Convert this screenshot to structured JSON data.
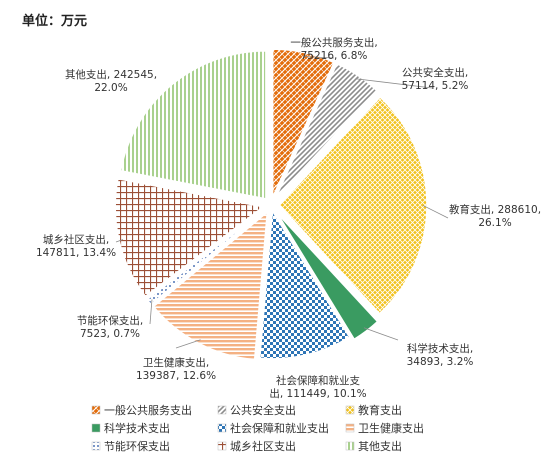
{
  "unit_label": "单位：万元",
  "chart_data": {
    "type": "pie",
    "title": "",
    "unit": "万元",
    "slices": [
      {
        "name": "一般公共服务支出",
        "value": 75216,
        "percent": "6.8%",
        "label_lines": [
          "一般公共服务支出,",
          "75216, 6.8%"
        ],
        "color": "#e36c0a",
        "pattern": "hatch-orange"
      },
      {
        "name": "公共安全支出",
        "value": 57114,
        "percent": "5.2%",
        "label_lines": [
          "公共安全支出,",
          "57114, 5.2%"
        ],
        "color": "#a6a6a6",
        "pattern": "diag-grey"
      },
      {
        "name": "教育支出",
        "value": 288610,
        "percent": "26.1%",
        "label_lines": [
          "教育支出, 288610,",
          "26.1%"
        ],
        "color": "#f2c21c",
        "pattern": "grid-yellow"
      },
      {
        "name": "科学技术支出",
        "value": 34893,
        "percent": "3.2%",
        "label_lines": [
          "科学技术支出,",
          "34893, 3.2%"
        ],
        "color": "#3a9b61",
        "pattern": "solid-green"
      },
      {
        "name": "社会保障和就业支出",
        "value": 111449,
        "percent": "10.1%",
        "label_lines": [
          "社会保障和就业支",
          "出, 111449, 10.1%"
        ],
        "color": "#2e75b6",
        "pattern": "check-blue"
      },
      {
        "name": "卫生健康支出",
        "value": 139387,
        "percent": "12.6%",
        "label_lines": [
          "卫生健康支出,",
          "139387, 12.6%"
        ],
        "color": "#f4b183",
        "pattern": "hlines-peach"
      },
      {
        "name": "节能环保支出",
        "value": 7523,
        "percent": "0.7%",
        "label_lines": [
          "节能环保支出,",
          "7523, 0.7%"
        ],
        "color": "#8aa6d6",
        "pattern": "dots-blue"
      },
      {
        "name": "城乡社区支出",
        "value": 147811,
        "percent": "13.4%",
        "label_lines": [
          "城乡社区支出,",
          "147811, 13.4%"
        ],
        "color": "#a05a3c",
        "pattern": "grid-brown"
      },
      {
        "name": "其他支出",
        "value": 242545,
        "percent": "22.0%",
        "label_lines": [
          "其他支出, 242545,",
          "22.0%"
        ],
        "color": "#a9d18e",
        "pattern": "vlines-green"
      }
    ],
    "legend_position": "bottom",
    "legend_columns": 3
  }
}
